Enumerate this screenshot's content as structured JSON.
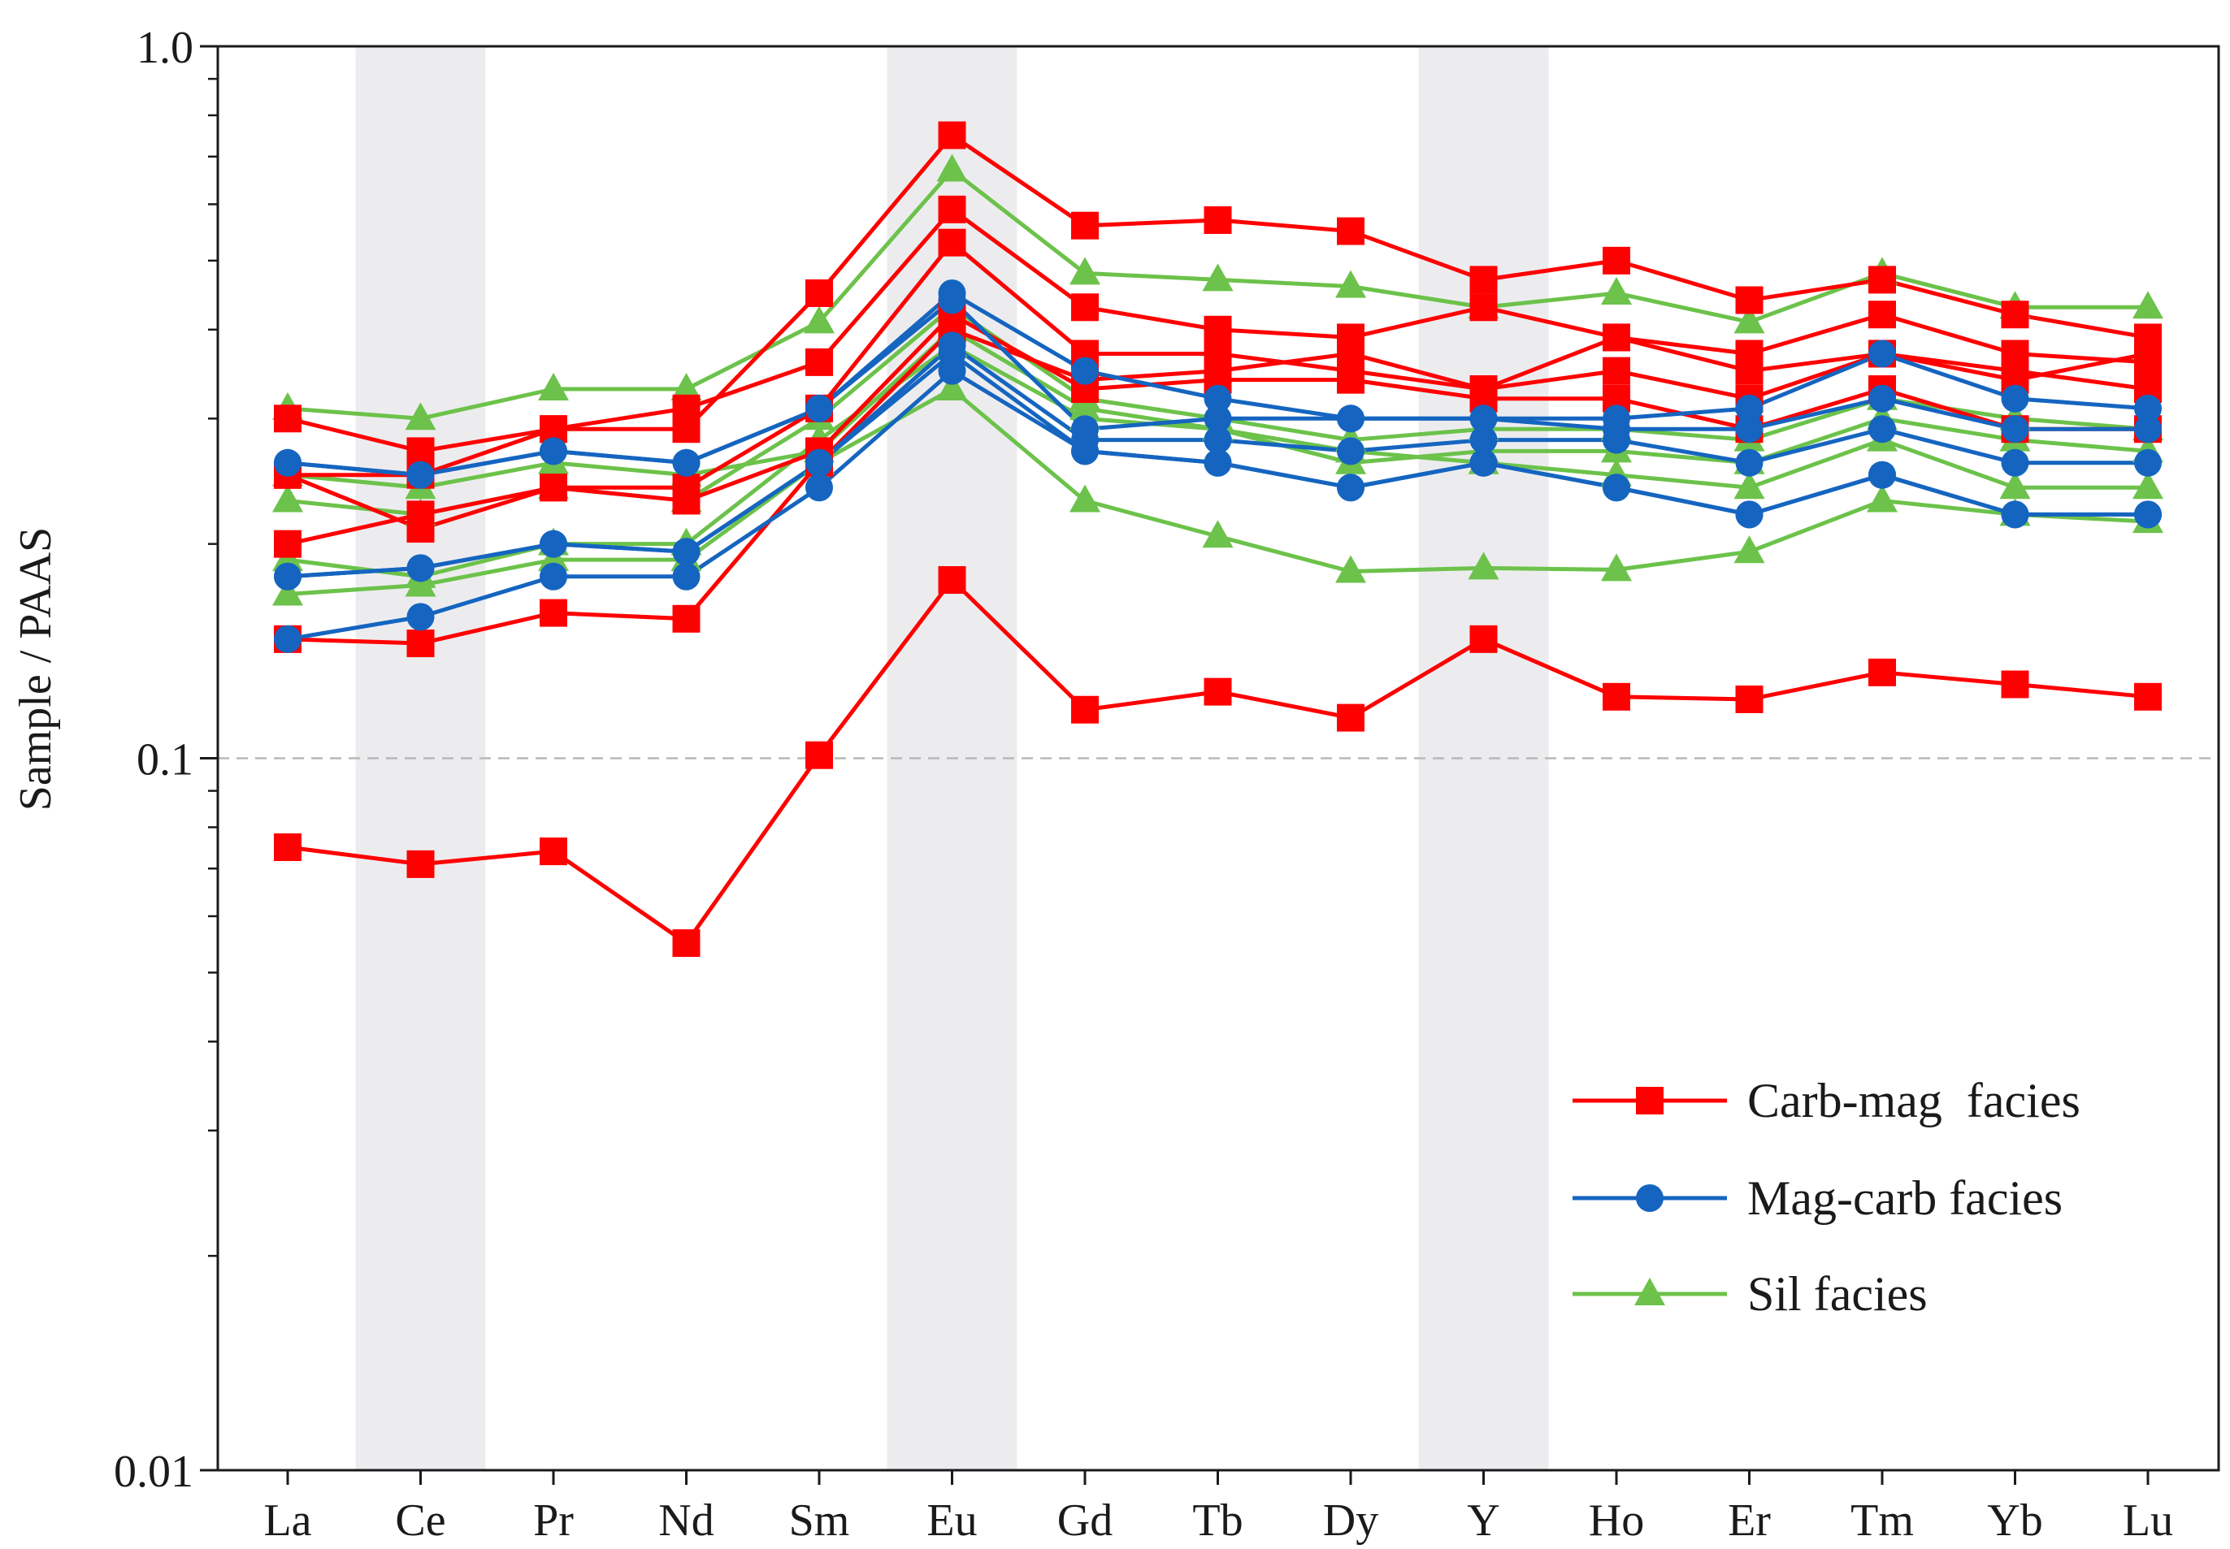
{
  "chart_data": {
    "type": "line",
    "ylabel": "Sample / PAAS",
    "yscale": "log",
    "ylim": [
      0.01,
      1.0
    ],
    "yticks": [
      {
        "value": 0.01,
        "label": "0.01"
      },
      {
        "value": 0.1,
        "label": "0.1"
      },
      {
        "value": 1.0,
        "label": "1.0"
      }
    ],
    "categories": [
      "La",
      "Ce",
      "Pr",
      "Nd",
      "Sm",
      "Eu",
      "Gd",
      "Tb",
      "Dy",
      "Y",
      "Ho",
      "Er",
      "Tm",
      "Yb",
      "Lu"
    ],
    "shaded_categories": [
      "Ce",
      "Eu",
      "Y"
    ],
    "reference_line": 0.1,
    "legend_position": "bottom-right",
    "groups": [
      {
        "name": "Carb-mag  facies",
        "color": "#ff0000",
        "marker": "square",
        "series": [
          {
            "values": [
              0.3,
              0.27,
              0.29,
              0.29,
              0.45,
              0.75,
              0.56,
              0.57,
              0.55,
              0.47,
              0.5,
              0.44,
              0.47,
              0.42,
              0.39
            ]
          },
          {
            "values": [
              0.25,
              0.25,
              0.29,
              0.31,
              0.36,
              0.59,
              0.43,
              0.4,
              0.39,
              0.43,
              0.39,
              0.37,
              0.42,
              0.37,
              0.36
            ]
          },
          {
            "values": [
              0.25,
              0.21,
              0.24,
              0.24,
              0.31,
              0.53,
              0.37,
              0.37,
              0.35,
              0.33,
              0.35,
              0.32,
              0.37,
              0.35,
              0.33
            ]
          },
          {
            "values": [
              0.2,
              0.22,
              0.24,
              0.23,
              0.27,
              0.42,
              0.33,
              0.34,
              0.34,
              0.32,
              0.32,
              0.29,
              0.33,
              0.29,
              0.29
            ]
          },
          {
            "values": [
              0.147,
              0.145,
              0.16,
              0.157,
              0.26,
              0.4,
              0.34,
              0.35,
              0.37,
              0.33,
              0.39,
              0.35,
              0.37,
              0.34,
              0.37
            ]
          },
          {
            "values": [
              0.075,
              0.071,
              0.074,
              0.055,
              0.101,
              0.178,
              0.117,
              0.124,
              0.114,
              0.147,
              0.122,
              0.121,
              0.132,
              0.127,
              0.122
            ]
          }
        ]
      },
      {
        "name": "Mag-carb facies",
        "color": "#1565c0",
        "marker": "circle",
        "series": [
          {
            "values": [
              0.26,
              0.25,
              0.27,
              0.26,
              0.31,
              0.45,
              0.35,
              0.32,
              0.3,
              0.3,
              0.3,
              0.31,
              0.37,
              0.32,
              0.31
            ]
          },
          {
            "values": [
              0.26,
              0.25,
              0.27,
              0.26,
              0.31,
              0.44,
              0.29,
              0.3,
              0.3,
              0.3,
              0.29,
              0.29,
              0.32,
              0.29,
              0.29
            ]
          },
          {
            "values": [
              0.18,
              0.185,
              0.2,
              0.195,
              0.26,
              0.38,
              0.28,
              0.28,
              0.27,
              0.28,
              0.28,
              0.26,
              0.29,
              0.26,
              0.26
            ]
          },
          {
            "values": [
              0.18,
              0.185,
              0.2,
              0.195,
              0.26,
              0.37,
              0.27,
              0.26,
              0.24,
              0.26,
              0.24,
              0.22,
              0.25,
              0.22,
              0.22
            ]
          },
          {
            "values": [
              0.147,
              0.158,
              0.18,
              0.18,
              0.24,
              0.35,
              0.27,
              0.26,
              0.24,
              0.26,
              0.24,
              0.22,
              0.25,
              0.22,
              0.22
            ]
          }
        ]
      },
      {
        "name": "Sil facies",
        "color": "#6cc24a",
        "marker": "triangle",
        "series": [
          {
            "values": [
              0.31,
              0.3,
              0.33,
              0.33,
              0.41,
              0.67,
              0.48,
              0.47,
              0.46,
              0.43,
              0.45,
              0.41,
              0.48,
              0.43,
              0.43
            ]
          },
          {
            "values": [
              0.23,
              0.22,
              0.24,
              0.23,
              0.3,
              0.43,
              0.32,
              0.3,
              0.28,
              0.29,
              0.29,
              0.28,
              0.32,
              0.3,
              0.29
            ]
          },
          {
            "values": [
              0.25,
              0.24,
              0.26,
              0.25,
              0.27,
              0.4,
              0.31,
              0.29,
              0.27,
              0.26,
              0.25,
              0.24,
              0.28,
              0.24,
              0.24
            ]
          },
          {
            "values": [
              0.19,
              0.18,
              0.2,
              0.2,
              0.28,
              0.38,
              0.3,
              0.29,
              0.26,
              0.27,
              0.27,
              0.26,
              0.3,
              0.28,
              0.27
            ]
          },
          {
            "values": [
              0.17,
              0.175,
              0.19,
              0.19,
              0.26,
              0.33,
              0.23,
              0.205,
              0.183,
              0.185,
              0.184,
              0.195,
              0.23,
              0.22,
              0.215
            ]
          }
        ]
      }
    ]
  }
}
